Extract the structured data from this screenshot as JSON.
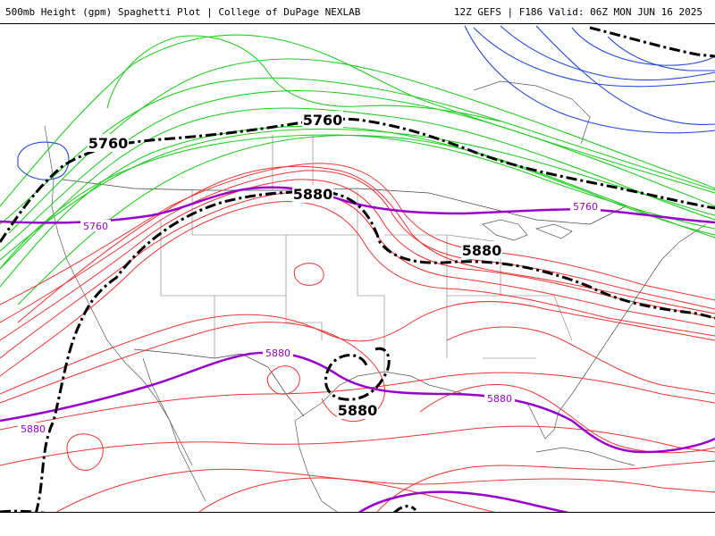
{
  "header": {
    "title": "500mb Height (gpm) Spaghetti Plot | College of DuPage NEXLAB",
    "run_info": "12Z GEFS | F186 Valid: 06Z MON JUN 16 2025"
  },
  "legend_colors": {
    "contour_5880_members": "#ee3333",
    "contour_5760_members": "#22cc22",
    "contour_5520_members": "#2244dd",
    "climatology": "#9900cc",
    "mean": "#000000"
  },
  "contour_labels": {
    "mean_5760_a": "5760",
    "mean_5760_b": "5760",
    "mean_5880_a": "5880",
    "mean_5880_b": "5880",
    "mean_5880_c": "5880",
    "clim_5760_a": "5760",
    "clim_5760_b": "5760",
    "clim_5880_a": "5880",
    "clim_5880_b": "5880",
    "clim_5880_c": "5880"
  }
}
